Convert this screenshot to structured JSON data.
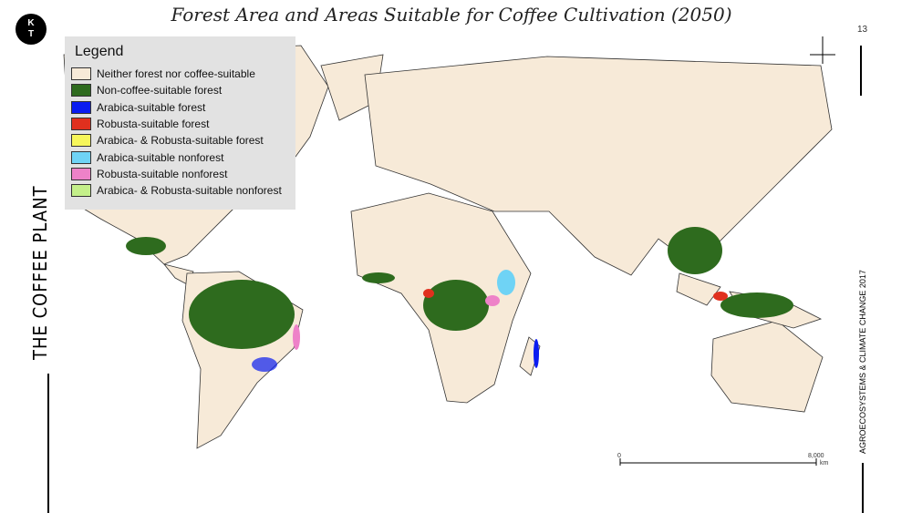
{
  "logo": {
    "line1": "K",
    "line2": "T"
  },
  "title": "Forest Area and Areas Suitable for Coffee Cultivation (2050)",
  "page_number": "13",
  "side_left": "THE COFFEE PLANT",
  "side_right": "AGROECOSYSTEMS & CLIMATE CHANGE 2017",
  "legend": {
    "title": "Legend",
    "items": [
      {
        "label": "Neither forest nor coffee-suitable",
        "color": "#f7ead8"
      },
      {
        "label": "Non-coffee-suitable forest",
        "color": "#2e6b1e"
      },
      {
        "label": "Arabica-suitable forest",
        "color": "#0a1cf0"
      },
      {
        "label": "Robusta-suitable forest",
        "color": "#e0301e"
      },
      {
        "label": "Arabica- & Robusta-suitable forest",
        "color": "#f6f65a"
      },
      {
        "label": "Arabica-suitable nonforest",
        "color": "#6fd3f5"
      },
      {
        "label": "Robusta-suitable nonforest",
        "color": "#ee82c8"
      },
      {
        "label": "Arabica- & Robusta-suitable nonforest",
        "color": "#c4f08a"
      }
    ]
  },
  "scale": {
    "start": "0",
    "end": "8,000",
    "unit": "km"
  }
}
